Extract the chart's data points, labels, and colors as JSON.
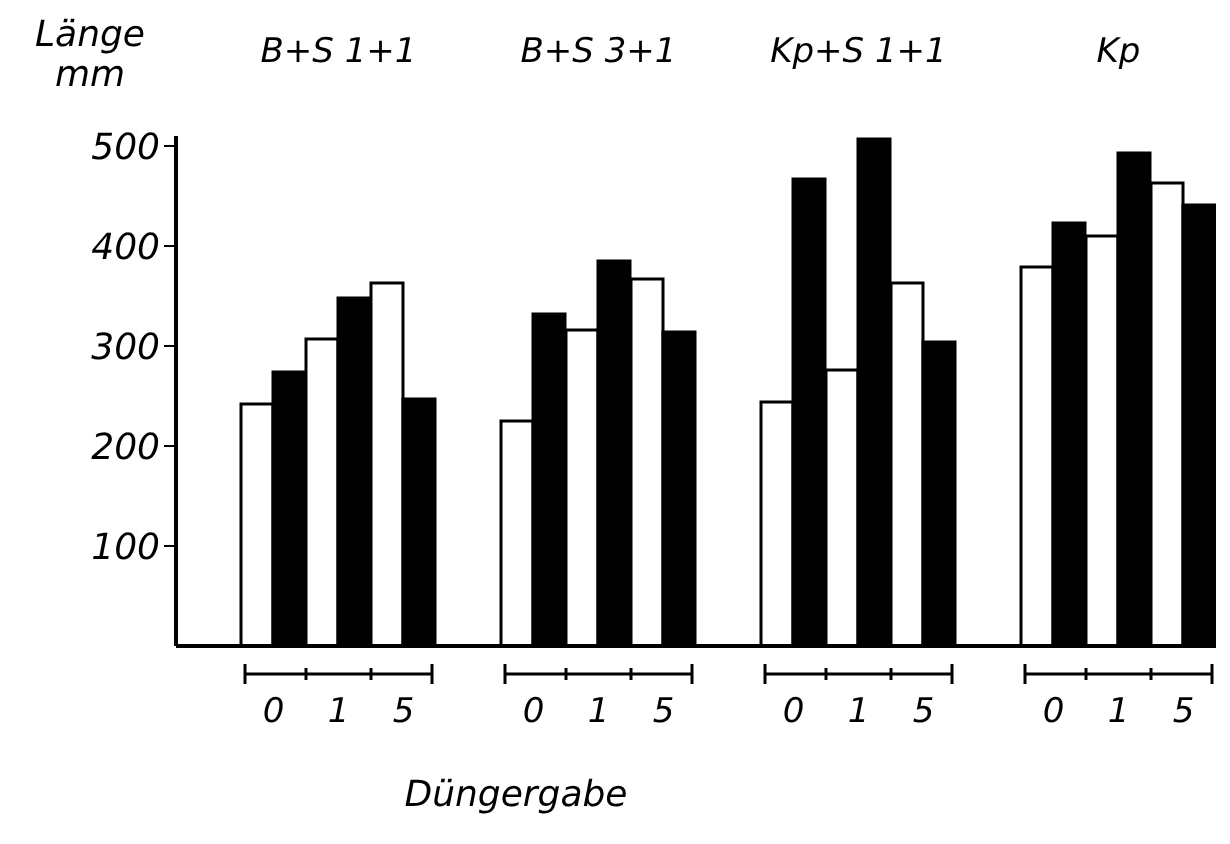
{
  "chart_data": {
    "type": "bar",
    "categories": [
      null,
      "0",
      "1",
      "5",
      null,
      "0",
      "1",
      "5",
      null,
      "0",
      "1",
      "5",
      null,
      "0",
      "1",
      "5"
    ],
    "series": [
      {
        "color": "#ffffff",
        "values": [
          null,
          242,
          307,
          363,
          null,
          225,
          316,
          367,
          null,
          244,
          276,
          363,
          null,
          379,
          410,
          463
        ]
      },
      {
        "color": "#000000",
        "values": [
          null,
          274,
          348,
          247,
          null,
          332,
          385,
          314,
          null,
          467,
          507,
          304,
          null,
          423,
          493,
          441
        ]
      }
    ],
    "ylabel": "Länge mm",
    "xlabel": "Düngergabe",
    "annotations": [
      "B+S 1+1",
      "B+S 3+1",
      "Kp+S 1+1",
      "Kp"
    ],
    "ylim": [
      0,
      510
    ],
    "yticks": [
      100,
      200,
      300,
      400,
      500
    ]
  }
}
